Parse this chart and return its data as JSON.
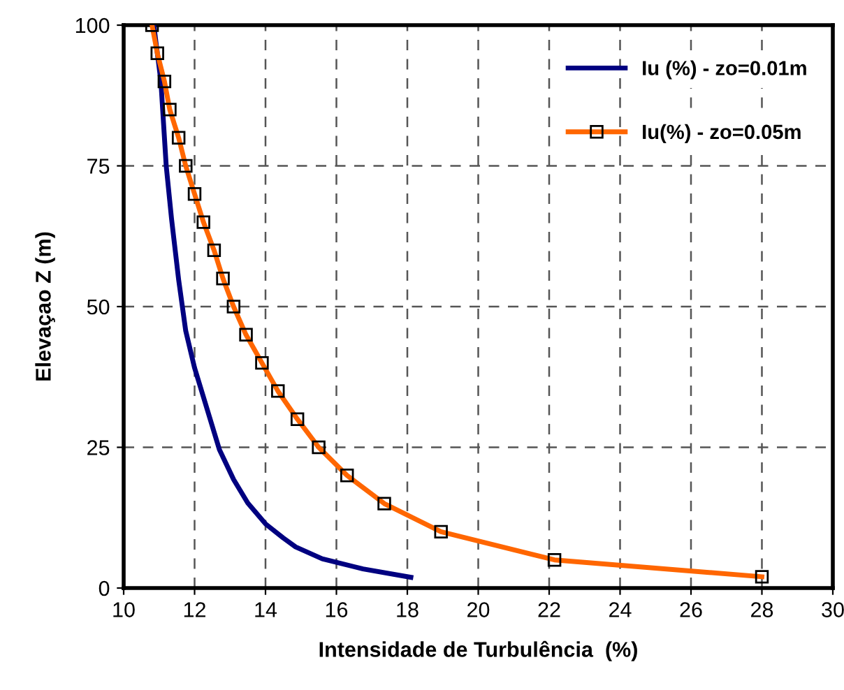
{
  "chart_data": {
    "type": "line",
    "xlabel": "Intensidade de Turbulência  (%)",
    "ylabel": "Elevaçao Z (m)",
    "xlim": [
      10,
      30
    ],
    "xticks": [
      10,
      12,
      14,
      16,
      18,
      20,
      22,
      24,
      26,
      28,
      30
    ],
    "ylim": [
      0,
      100
    ],
    "yticks": [
      0,
      25,
      50,
      75,
      100
    ],
    "grid": true,
    "legend": "top right",
    "series": [
      {
        "name": "Iu (%) - zo=0.01m",
        "color": "#000080",
        "marker": "none",
        "x": [
          10.85,
          10.95,
          11.05,
          11.1,
          11.2,
          11.35,
          11.55,
          11.75,
          12.0,
          12.7,
          13.1,
          13.5,
          14.0,
          14.5,
          14.85,
          15.6,
          16.75,
          18.1
        ],
        "values": [
          100,
          95,
          90,
          85,
          75,
          65.6,
          54.8,
          45.7,
          39.1,
          24.6,
          19.3,
          15.1,
          11.4,
          8.9,
          7.3,
          5.2,
          3.4,
          1.9
        ]
      },
      {
        "name": "Iu(%) - zo=0.05m",
        "color": "#ff6600",
        "marker": "square",
        "x": [
          10.8,
          10.95,
          11.15,
          11.3,
          11.55,
          11.75,
          12.0,
          12.25,
          12.55,
          12.8,
          13.1,
          13.45,
          13.9,
          14.35,
          14.9,
          15.5,
          16.3,
          17.35,
          18.95,
          22.15,
          28.0
        ],
        "values": [
          100,
          95,
          90,
          85,
          80,
          75,
          70,
          65,
          60,
          55,
          50,
          45,
          40,
          35,
          30,
          25,
          20,
          15,
          10,
          5,
          2
        ]
      }
    ]
  }
}
